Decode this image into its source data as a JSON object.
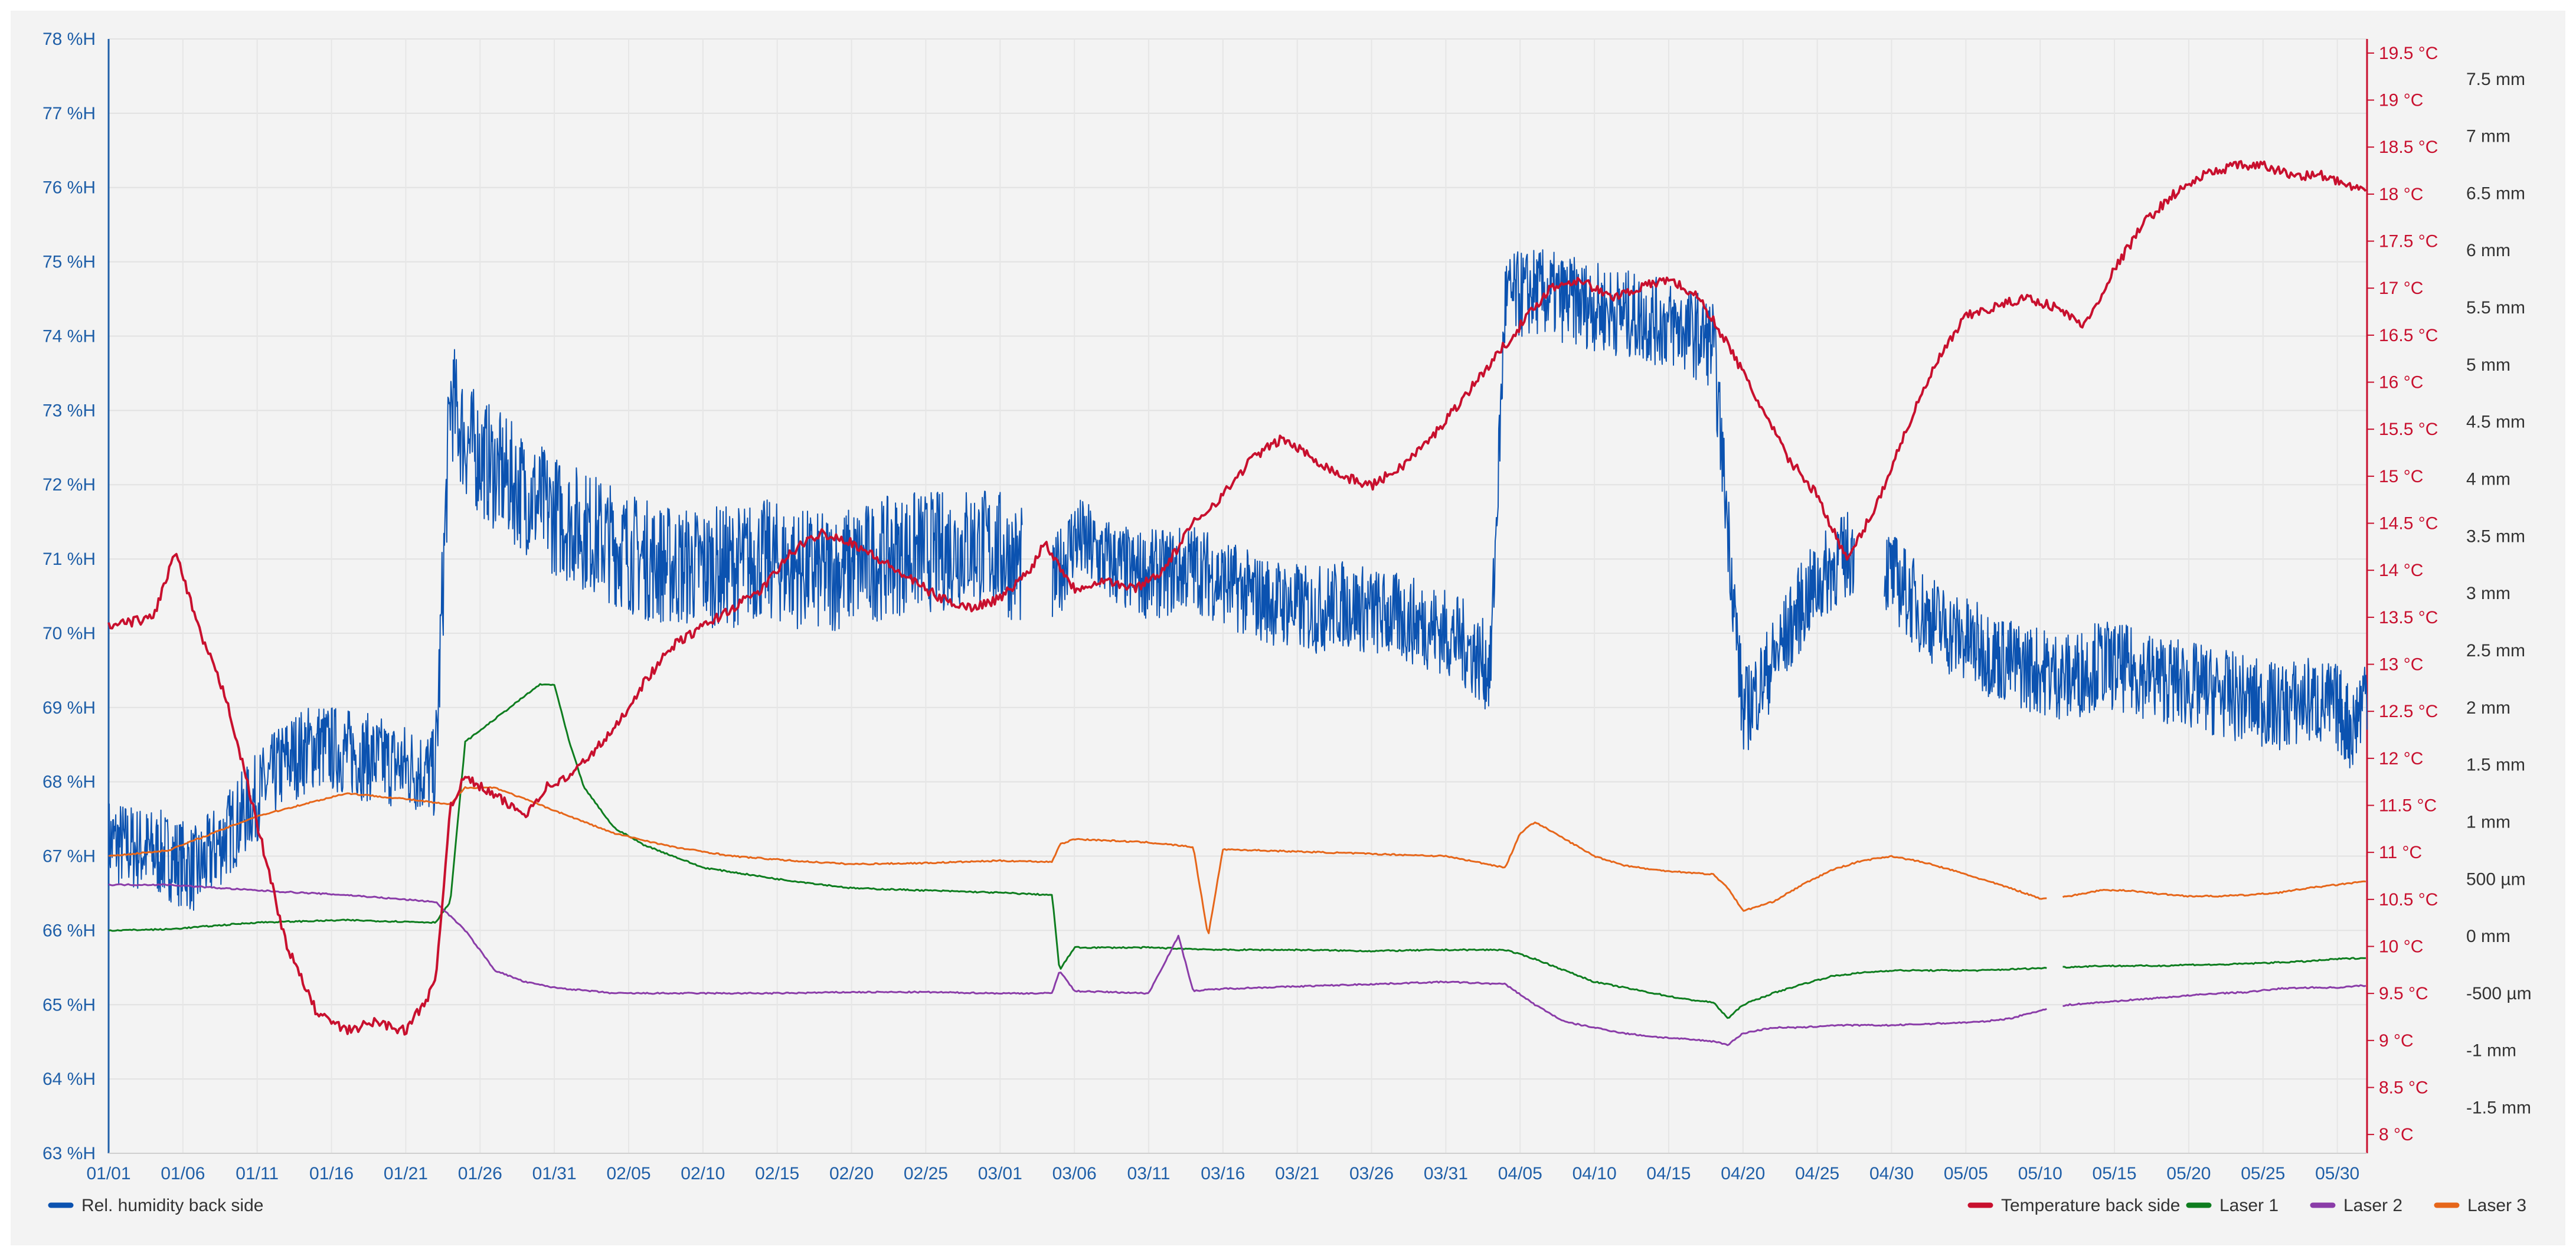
{
  "chart_data": {
    "type": "line",
    "grid": true,
    "legend_placement": "bottom-left and bottom-right",
    "x_ticks": [
      "01/01",
      "01/06",
      "01/11",
      "01/16",
      "01/21",
      "01/26",
      "01/31",
      "02/05",
      "02/10",
      "02/15",
      "02/20",
      "02/25",
      "03/01",
      "03/06",
      "03/11",
      "03/16",
      "03/21",
      "03/26",
      "03/31",
      "04/05",
      "04/10",
      "04/15",
      "04/20",
      "04/25",
      "04/30",
      "05/05",
      "05/10",
      "05/15",
      "05/20",
      "05/25",
      "05/30"
    ],
    "x_range_days": [
      0,
      152
    ],
    "axes": {
      "humidity": {
        "range": [
          63,
          78
        ],
        "ticks": [
          "63 %H",
          "64 %H",
          "65 %H",
          "66 %H",
          "67 %H",
          "68 %H",
          "69 %H",
          "70 %H",
          "71 %H",
          "72 %H",
          "73 %H",
          "74 %H",
          "75 %H",
          "76 %H",
          "77 %H",
          "78 %H"
        ]
      },
      "temperature": {
        "range": [
          7.8,
          19.65
        ],
        "ticks": [
          "8 °C",
          "8.5 °C",
          "9 °C",
          "9.5 °C",
          "10 °C",
          "10.5 °C",
          "11 °C",
          "11.5 °C",
          "12 °C",
          "12.5 °C",
          "13 °C",
          "13.5 °C",
          "14 °C",
          "14.5 °C",
          "15 °C",
          "15.5 °C",
          "16 °C",
          "16.5 °C",
          "17 °C",
          "17.5 °C",
          "18 °C",
          "18.5 °C",
          "19 °C",
          "19.5 °C"
        ]
      },
      "displacement": {
        "range_mm": [
          -1.9,
          7.85
        ],
        "ticks": [
          "-1.5 mm",
          "-1 mm",
          "-500 µm",
          "0 mm",
          "500 µm",
          "1 mm",
          "1.5 mm",
          "2 mm",
          "2.5 mm",
          "3 mm",
          "3.5 mm",
          "4 mm",
          "4.5 mm",
          "5 mm",
          "5.5 mm",
          "6 mm",
          "6.5 mm",
          "7 mm",
          "7.5 mm"
        ]
      }
    },
    "series": [
      {
        "name": "Rel. humidity back side",
        "axis": "humidity",
        "color": "#0b52b0",
        "x": [
          0,
          2,
          4,
          6,
          8,
          10,
          12,
          14,
          16,
          18,
          20,
          22,
          23,
          24,
          26,
          28,
          30,
          32,
          34,
          36,
          38,
          40,
          42,
          44,
          46,
          48,
          50,
          52,
          54,
          56,
          58,
          60,
          63.5,
          65,
          67,
          69,
          71,
          73,
          75,
          77,
          79,
          81,
          83,
          85,
          87,
          89,
          91,
          93,
          94,
          96,
          98,
          100,
          102,
          104,
          106,
          108,
          110,
          112,
          114,
          116,
          118,
          120,
          122,
          124,
          126,
          128,
          130,
          132,
          134,
          136,
          138,
          140,
          142,
          144,
          146,
          148,
          150,
          151,
          152
        ],
        "y": [
          67.2,
          67.1,
          67.0,
          66.8,
          67.3,
          67.8,
          68.3,
          68.5,
          68.4,
          68.3,
          68.2,
          68.1,
          73.2,
          72.6,
          72.2,
          71.9,
          71.6,
          71.4,
          71.2,
          71.0,
          70.9,
          70.9,
          70.9,
          71.0,
          70.9,
          70.8,
          70.9,
          71.0,
          71.1,
          71.1,
          71.2,
          71.1,
          70.6,
          71.3,
          71.0,
          70.8,
          70.8,
          70.9,
          70.7,
          70.5,
          70.4,
          70.3,
          70.4,
          70.3,
          70.2,
          70.1,
          69.9,
          69.5,
          74.5,
          74.6,
          74.5,
          74.4,
          74.3,
          74.2,
          74.1,
          73.9,
          68.9,
          69.6,
          70.4,
          70.9,
          71.2,
          70.8,
          70.3,
          70.0,
          69.8,
          69.6,
          69.5,
          69.4,
          69.6,
          69.5,
          69.4,
          69.3,
          69.2,
          69.1,
          69.0,
          69.1,
          69.0,
          68.7,
          69.3
        ],
        "gaps": [
          [
            61.5,
            63.5
          ],
          [
            117.5,
            119.5
          ]
        ]
      },
      {
        "name": "Temperature back side",
        "axis": "temperature",
        "color": "#c8102e",
        "x": [
          0,
          3,
          4.5,
          6,
          8,
          10,
          12,
          14,
          16,
          18,
          20,
          22,
          23,
          24,
          26,
          28,
          29.5,
          31,
          34,
          36,
          38,
          40,
          42,
          44,
          46,
          48,
          50,
          52,
          54,
          56,
          58,
          60,
          62,
          63,
          65,
          67,
          69,
          71,
          73,
          75,
          77,
          79,
          81,
          83,
          85,
          87,
          89,
          91,
          93,
          95,
          97,
          99,
          101,
          103,
          105,
          107,
          109,
          111,
          113,
          115,
          117,
          119,
          121,
          123,
          125,
          127,
          129,
          131,
          133,
          135,
          137,
          139,
          141,
          143,
          145,
          147,
          149,
          152
        ],
        "y": [
          13.4,
          13.5,
          14.2,
          13.4,
          12.6,
          11.3,
          10.0,
          9.3,
          9.1,
          9.2,
          9.1,
          9.6,
          11.5,
          11.8,
          11.6,
          11.4,
          11.7,
          11.8,
          12.3,
          12.8,
          13.2,
          13.4,
          13.6,
          13.8,
          14.2,
          14.4,
          14.3,
          14.1,
          13.9,
          13.7,
          13.6,
          13.7,
          14.0,
          14.3,
          13.8,
          13.9,
          13.8,
          14.0,
          14.5,
          14.8,
          15.2,
          15.4,
          15.2,
          15.0,
          14.9,
          15.1,
          15.4,
          15.8,
          16.2,
          16.6,
          17.0,
          17.1,
          16.9,
          17.0,
          17.1,
          16.9,
          16.4,
          15.8,
          15.2,
          14.8,
          14.1,
          14.7,
          15.5,
          16.2,
          16.7,
          16.8,
          16.9,
          16.8,
          16.6,
          17.2,
          17.7,
          18.0,
          18.2,
          18.3,
          18.3,
          18.2,
          18.2,
          18.0
        ]
      },
      {
        "name": "Laser 1",
        "axis": "displacement",
        "unit": "mm",
        "color": "#0e7d1f",
        "x": [
          0,
          4,
          10,
          16,
          22,
          23,
          24,
          26,
          28,
          29,
          30,
          31,
          32,
          34,
          36,
          38,
          40,
          45,
          50,
          55,
          60,
          63.5,
          64,
          65,
          70,
          75,
          80,
          85,
          90,
          94,
          96,
          98,
          100,
          102,
          104,
          106,
          108,
          109,
          110,
          112,
          114,
          116,
          118,
          120,
          122,
          124,
          126,
          128,
          130,
          132,
          134,
          136,
          138,
          140,
          142,
          144,
          146,
          148,
          150,
          152
        ],
        "y": [
          0.05,
          0.06,
          0.12,
          0.14,
          0.12,
          0.3,
          1.7,
          1.9,
          2.1,
          2.2,
          2.2,
          1.7,
          1.3,
          0.95,
          0.8,
          0.7,
          0.6,
          0.5,
          0.42,
          0.4,
          0.38,
          0.36,
          -0.3,
          -0.1,
          -0.1,
          -0.12,
          -0.12,
          -0.13,
          -0.12,
          -0.12,
          -0.2,
          -0.3,
          -0.4,
          -0.45,
          -0.5,
          -0.55,
          -0.58,
          -0.72,
          -0.6,
          -0.5,
          -0.42,
          -0.35,
          -0.32,
          -0.3,
          -0.3,
          -0.3,
          -0.3,
          -0.29,
          -0.28,
          -0.27,
          -0.26,
          -0.26,
          -0.26,
          -0.25,
          -0.25,
          -0.24,
          -0.23,
          -0.22,
          -0.2,
          -0.19
        ],
        "gaps": [
          [
            130.5,
            131.5
          ]
        ]
      },
      {
        "name": "Laser 2",
        "axis": "displacement",
        "unit": "mm",
        "color": "#8a3ca8",
        "x": [
          0,
          4,
          10,
          16,
          22,
          24,
          26,
          28,
          30,
          34,
          40,
          45,
          50,
          55,
          60,
          63.5,
          64,
          65,
          70,
          72,
          73,
          74,
          75,
          80,
          85,
          90,
          94,
          96,
          98,
          100,
          102,
          104,
          106,
          108,
          109,
          110,
          112,
          114,
          116,
          118,
          120,
          122,
          124,
          126,
          128,
          130,
          132,
          134,
          136,
          138,
          140,
          142,
          144,
          146,
          148,
          150,
          152
        ],
        "y": [
          0.45,
          0.45,
          0.4,
          0.36,
          0.3,
          0.05,
          -0.3,
          -0.4,
          -0.45,
          -0.5,
          -0.5,
          -0.5,
          -0.49,
          -0.49,
          -0.5,
          -0.5,
          -0.3,
          -0.48,
          -0.5,
          0.0,
          -0.48,
          -0.47,
          -0.46,
          -0.44,
          -0.42,
          -0.4,
          -0.42,
          -0.6,
          -0.75,
          -0.8,
          -0.85,
          -0.88,
          -0.9,
          -0.92,
          -0.95,
          -0.85,
          -0.8,
          -0.8,
          -0.78,
          -0.78,
          -0.78,
          -0.77,
          -0.76,
          -0.75,
          -0.72,
          -0.65,
          -0.6,
          -0.58,
          -0.56,
          -0.54,
          -0.52,
          -0.5,
          -0.49,
          -0.46,
          -0.45,
          -0.45,
          -0.43
        ],
        "gaps": [
          [
            130.5,
            131.5
          ]
        ]
      },
      {
        "name": "Laser 3",
        "axis": "displacement",
        "unit": "mm",
        "color": "#e6661a",
        "x": [
          0,
          4,
          10,
          16,
          20,
          23,
          24,
          26,
          28,
          30,
          34,
          38,
          42,
          46,
          50,
          55,
          60,
          63.5,
          64,
          65,
          70,
          73,
          74,
          75,
          80,
          85,
          90,
          94,
          95,
          96,
          98,
          100,
          102,
          104,
          106,
          108,
          109,
          110,
          112,
          114,
          116,
          118,
          120,
          122,
          124,
          126,
          128,
          130,
          132,
          134,
          136,
          138,
          140,
          142,
          144,
          146,
          148,
          150,
          152
        ],
        "y": [
          0.7,
          0.75,
          1.05,
          1.25,
          1.2,
          1.15,
          1.3,
          1.3,
          1.2,
          1.1,
          0.9,
          0.78,
          0.7,
          0.66,
          0.63,
          0.64,
          0.66,
          0.65,
          0.8,
          0.85,
          0.82,
          0.78,
          0.0,
          0.76,
          0.74,
          0.72,
          0.7,
          0.6,
          0.9,
          1.0,
          0.85,
          0.7,
          0.62,
          0.58,
          0.56,
          0.54,
          0.42,
          0.22,
          0.3,
          0.45,
          0.58,
          0.66,
          0.7,
          0.65,
          0.58,
          0.5,
          0.42,
          0.33,
          0.35,
          0.4,
          0.4,
          0.37,
          0.35,
          0.35,
          0.36,
          0.38,
          0.42,
          0.45,
          0.48
        ],
        "gaps": [
          [
            130.5,
            131.5
          ]
        ]
      }
    ]
  }
}
